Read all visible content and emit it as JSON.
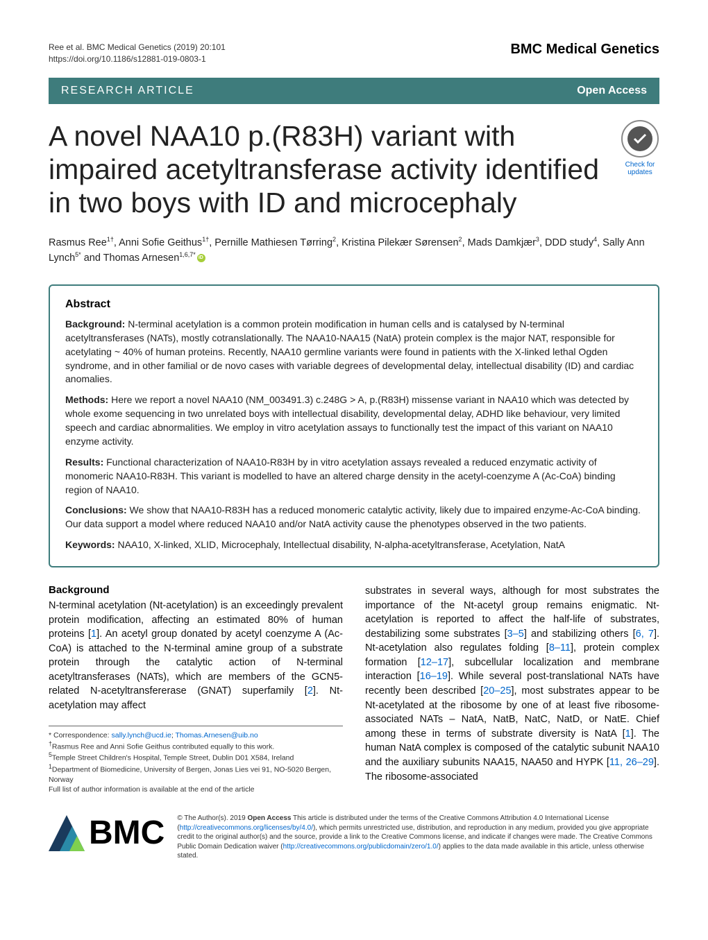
{
  "header": {
    "citation_line1": "Ree et al. BMC Medical Genetics      (2019) 20:101",
    "citation_line2": "https://doi.org/10.1186/s12881-019-0803-1",
    "journal": "BMC Medical Genetics"
  },
  "banner": {
    "left": "RESEARCH ARTICLE",
    "right": "Open Access"
  },
  "title": "A novel NAA10 p.(R83H) variant with impaired acetyltransferase activity identified in two boys with ID and microcephaly",
  "badge": {
    "line1": "Check for",
    "line2": "updates"
  },
  "authors_html": "Rasmus Ree<sup>1†</sup>, Anni Sofie Geithus<sup>1†</sup>, Pernille Mathiesen Tørring<sup>2</sup>, Kristina Pilekær Sørensen<sup>2</sup>, Mads Damkjær<sup>3</sup>, DDD study<sup>4</sup>, Sally Ann Lynch<sup>5*</sup> and Thomas Arnesen<sup>1,6,7*</sup>",
  "abstract": {
    "heading": "Abstract",
    "background_label": "Background:",
    "background": " N-terminal acetylation is a common protein modification in human cells and is catalysed by N-terminal acetyltransferases (NATs), mostly cotranslationally. The NAA10-NAA15 (NatA) protein complex is the major NAT, responsible for acetylating ~ 40% of human proteins. Recently, NAA10 germline variants were found in patients with the X-linked lethal Ogden syndrome, and in other familial or de novo cases with variable degrees of developmental delay, intellectual disability (ID) and cardiac anomalies.",
    "methods_label": "Methods:",
    "methods": " Here we report a novel NAA10 (NM_003491.3) c.248G > A, p.(R83H) missense variant in NAA10 which was detected by whole exome sequencing in two unrelated boys with intellectual disability, developmental delay, ADHD like behaviour, very limited speech and cardiac abnormalities. We employ in vitro acetylation assays to functionally test the impact of this variant on NAA10 enzyme activity.",
    "results_label": "Results:",
    "results": " Functional characterization of NAA10-R83H by in vitro acetylation assays revealed a reduced enzymatic activity of monomeric NAA10-R83H. This variant is modelled to have an altered charge density in the acetyl-coenzyme A (Ac-CoA) binding region of NAA10.",
    "conclusions_label": "Conclusions:",
    "conclusions": " We show that NAA10-R83H has a reduced monomeric catalytic activity, likely due to impaired enzyme-Ac-CoA binding. Our data support a model where reduced NAA10 and/or NatA activity cause the phenotypes observed in the two patients.",
    "keywords_label": "Keywords:",
    "keywords": " NAA10, X-linked, XLID, Microcephaly, Intellectual disability, N-alpha-acetyltransferase, Acetylation, NatA"
  },
  "body": {
    "background_heading": "Background",
    "col1": "N-terminal acetylation (Nt-acetylation) is an exceedingly prevalent protein modification, affecting an estimated 80% of human proteins [1]. An acetyl group donated by acetyl coenzyme A (Ac-CoA) is attached to the N-terminal amine group of a substrate protein through the catalytic action of N-terminal acetyltransferases (NATs), which are members of the GCN5-related N-acetyltransfererase (GNAT) superfamily [2]. Nt-acetylation may affect",
    "col2": "substrates in several ways, although for most substrates the importance of the Nt-acetyl group remains enigmatic. Nt-acetylation is reported to affect the half-life of substrates, destabilizing some substrates [3–5] and stabilizing others [6, 7]. Nt-acetylation also regulates folding [8–11], protein complex formation [12–17], subcellular localization and membrane interaction [16–19]. While several post-translational NATs have recently been described [20–25], most substrates appear to be Nt-acetylated at the ribosome by one of at least five ribosome-associated NATs – NatA, NatB, NatC, NatD, or NatE. Chief among these in terms of substrate diversity is NatA [1]. The human NatA complex is composed of the catalytic subunit NAA10 and the auxiliary subunits NAA15, NAA50 and HYPK [11, 26–29]. The ribosome-associated"
  },
  "footnotes": {
    "correspondence_label": "* Correspondence: ",
    "email1": "sally.lynch@ucd.ie",
    "sep": "; ",
    "email2": "Thomas.Arnesen@uib.no",
    "equal": "Rasmus Ree and Anni Sofie Geithus contributed equally to this work.",
    "aff5": "Temple Street Children's Hospital, Temple Street, Dublin D01 X584, Ireland",
    "aff1": "Department of Biomedicine, University of Bergen, Jonas Lies vei 91, NO-5020 Bergen, Norway",
    "full_list": "Full list of author information is available at the end of the article"
  },
  "license": {
    "bmc": "BMC",
    "text_prefix": "© The Author(s). 2019 ",
    "open_access": "Open Access",
    "text_body": " This article is distributed under the terms of the Creative Commons Attribution 4.0 International License (",
    "link1": "http://creativecommons.org/licenses/by/4.0/",
    "text_mid": "), which permits unrestricted use, distribution, and reproduction in any medium, provided you give appropriate credit to the original author(s) and the source, provide a link to the Creative Commons license, and indicate if changes were made. The Creative Commons Public Domain Dedication waiver (",
    "link2": "http://creativecommons.org/publicdomain/zero/1.0/",
    "text_end": ") applies to the data made available in this article, unless otherwise stated."
  },
  "colors": {
    "brand": "#3e7c7c",
    "link": "#0066cc",
    "orcid": "#a6ce39"
  }
}
